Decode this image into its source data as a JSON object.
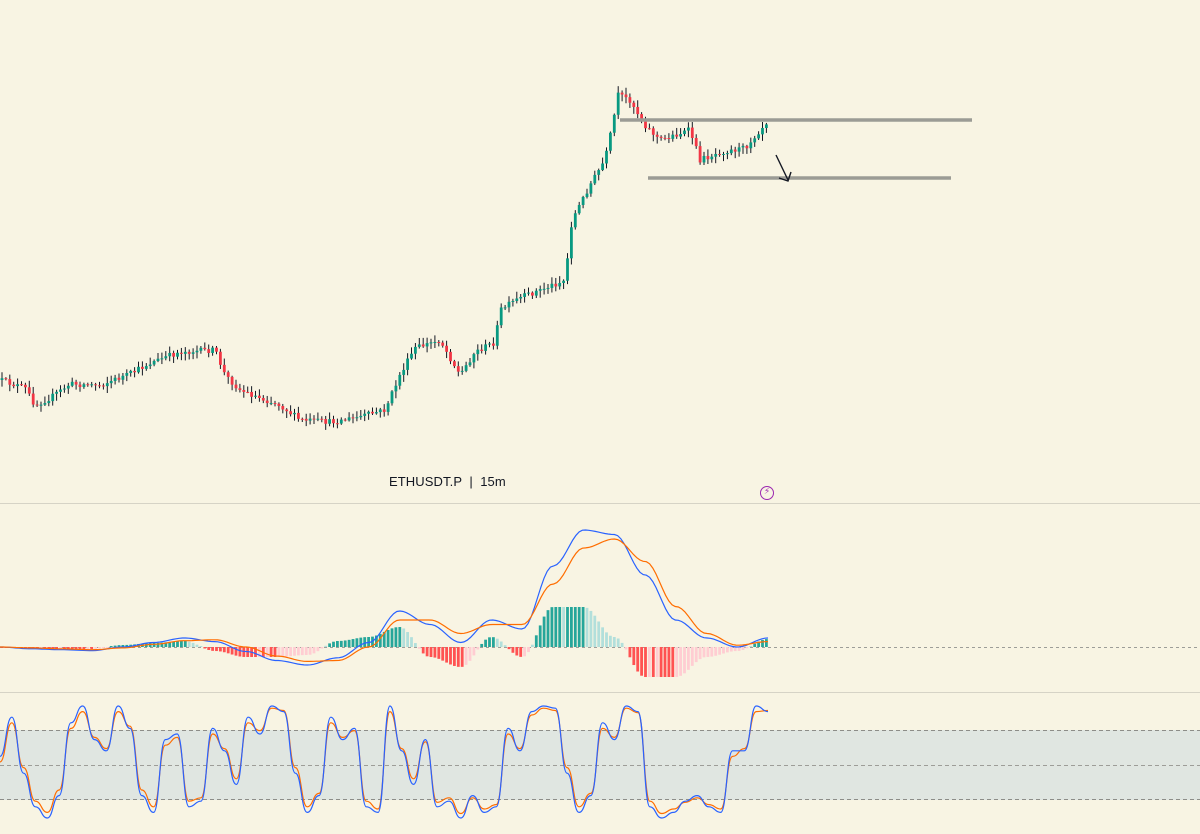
{
  "header": {
    "symbol": "ETHUSDT.P",
    "separator": "|",
    "timeframe": "15m",
    "symbol_line": "ETHUSDT.P  |  15m"
  },
  "icons": {
    "flash_badge": "lightning-icon"
  },
  "colors": {
    "background": "#f8f4e3",
    "candle_up": "#089981",
    "candle_down": "#f23645",
    "wick": "#131722",
    "level_line": "#9b9b95",
    "macd_line": "#2962ff",
    "signal_line": "#ff6d00",
    "hist_up_strong": "#26a69a",
    "hist_up_weak": "#b2dfdb",
    "hist_down_strong": "#ff5252",
    "hist_down_weak": "#ffcdd2",
    "stoch_k": "#2962ff",
    "stoch_d": "#ff6d00",
    "stoch_band": "#e0e6e1",
    "pane_divider": "#d6d3c6"
  },
  "chart_data": [
    {
      "type": "candlestick",
      "pane": "price",
      "title": "ETHUSDT.P | 15m",
      "candles": [],
      "levels": [
        "resistance",
        "support"
      ],
      "annotations": [
        "arrow-down-right"
      ]
    },
    {
      "type": "line",
      "pane": "macd",
      "series": [
        {
          "values": [
            0.0,
            -0.2,
            -0.3,
            -0.4,
            0.0,
            0.5,
            1.0,
            0.6,
            -0.5,
            -1.5,
            -2.0,
            -1.2,
            0.5,
            4.0,
            2.5,
            0.5,
            3.0,
            2.0,
            9.0,
            13.0,
            12.5,
            8.0,
            3.0,
            1.0,
            0.0,
            1.0
          ]
        },
        {
          "values": [
            0.0,
            -0.1,
            -0.2,
            -0.3,
            -0.1,
            0.3,
            0.7,
            0.8,
            0.0,
            -1.0,
            -1.6,
            -1.5,
            0.0,
            3.0,
            3.0,
            1.5,
            2.5,
            2.5,
            7.0,
            11.0,
            12.0,
            9.5,
            4.5,
            1.5,
            0.2,
            0.6
          ]
        }
      ],
      "histogram": true,
      "zero_line": true
    },
    {
      "type": "line",
      "pane": "stochastic_rsi",
      "series": [
        {
          "values": [
            55,
            90,
            40,
            10,
            0,
            20,
            85,
            100,
            70,
            60,
            100,
            80,
            20,
            5,
            70,
            75,
            10,
            15,
            80,
            60,
            30,
            90,
            75,
            100,
            95,
            40,
            5,
            20,
            90,
            70,
            80,
            10,
            5,
            100,
            60,
            30,
            70,
            10,
            15,
            0,
            20,
            5,
            10,
            80,
            60,
            95,
            100,
            98,
            40,
            5,
            20,
            85,
            70,
            100,
            95,
            10,
            0,
            5,
            15,
            20,
            10,
            5,
            60,
            60,
            100,
            95
          ]
        },
        {
          "values": [
            50,
            85,
            45,
            15,
            5,
            25,
            80,
            95,
            72,
            62,
            95,
            82,
            25,
            10,
            65,
            72,
            15,
            18,
            75,
            62,
            35,
            85,
            78,
            98,
            96,
            45,
            10,
            22,
            85,
            72,
            78,
            15,
            8,
            95,
            62,
            35,
            68,
            14,
            18,
            4,
            18,
            8,
            12,
            75,
            62,
            92,
            98,
            96,
            45,
            10,
            22,
            80,
            72,
            98,
            94,
            15,
            4,
            8,
            14,
            18,
            12,
            8,
            55,
            62,
            95,
            96
          ]
        }
      ],
      "bands": [
        80,
        20
      ],
      "midline": 50
    }
  ]
}
